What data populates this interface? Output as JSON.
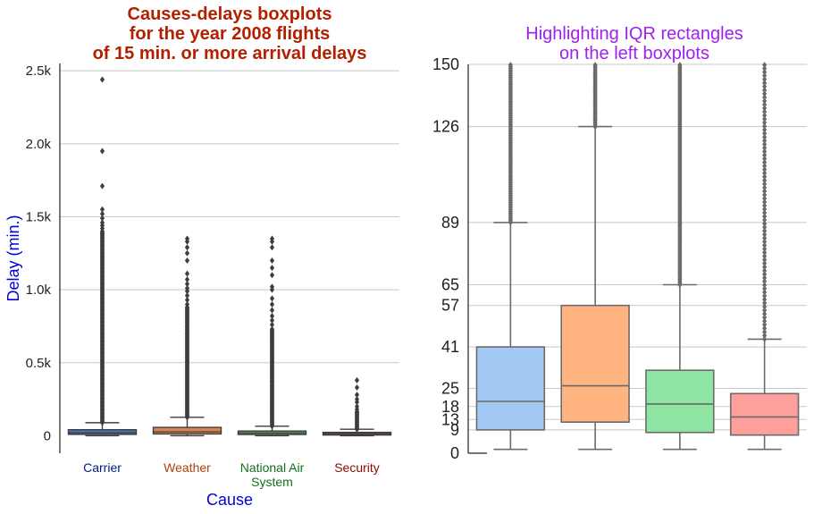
{
  "chart_data": [
    {
      "type": "boxplot",
      "title": "Causes-delays boxplots\nfor the year 2008 flights\nof 15 min. or more arrival delays",
      "xlabel": "Cause",
      "ylabel": "Delay (min.)",
      "ylim": [
        -120,
        2550
      ],
      "yticks": [
        {
          "value": 0,
          "label": "0"
        },
        {
          "value": 500,
          "label": "0.5k"
        },
        {
          "value": 1000,
          "label": "1.0k"
        },
        {
          "value": 1500,
          "label": "1.5k"
        },
        {
          "value": 2000,
          "label": "2.0k"
        },
        {
          "value": 2500,
          "label": "2.5k"
        }
      ],
      "grid": "horizontal",
      "categories": [
        {
          "label": "Carrier",
          "label_color": "#001c7f",
          "box_color": "#4c72b0"
        },
        {
          "label": "Weather",
          "label_color": "#b1400d",
          "box_color": "#dd8452"
        },
        {
          "label": "National Air\nSystem",
          "label_color": "#12711c",
          "box_color": "#55a868"
        },
        {
          "label": "Security",
          "label_color": "#8c0800",
          "box_color": "#c44e52"
        }
      ],
      "boxes": [
        {
          "whisker_low": 0,
          "q1": 9,
          "median": 20,
          "q3": 41,
          "whisker_high": 89,
          "outliers_from": 89,
          "outliers_to": 1400,
          "extra_outliers": [
            1420,
            1440,
            1460,
            1490,
            1520,
            1550,
            1710,
            1950,
            2440
          ]
        },
        {
          "whisker_low": 0,
          "q1": 12,
          "median": 26,
          "q3": 57,
          "whisker_high": 126,
          "outliers_from": 126,
          "outliers_to": 880,
          "extra_outliers": [
            900,
            930,
            960,
            990,
            1010,
            1040,
            1070,
            1110,
            1200,
            1250,
            1290,
            1330,
            1350
          ]
        },
        {
          "whisker_low": 0,
          "q1": 8,
          "median": 19,
          "q3": 32,
          "whisker_high": 65,
          "outliers_from": 65,
          "outliers_to": 730,
          "extra_outliers": [
            760,
            790,
            820,
            860,
            900,
            940,
            1000,
            1020,
            1100,
            1150,
            1200,
            1290,
            1330,
            1350
          ]
        },
        {
          "whisker_low": 0,
          "q1": 7,
          "median": 14,
          "q3": 23,
          "whisker_high": 44,
          "outliers_from": 44,
          "outliers_to": 160,
          "extra_outliers": [
            165,
            180,
            200,
            230,
            250,
            280,
            330,
            380
          ]
        }
      ]
    },
    {
      "type": "boxplot",
      "title": "Highlighting IQR rectangles\non the left boxplots",
      "xlabel": "",
      "ylabel": "",
      "ylim": [
        0,
        150
      ],
      "yticks": [
        {
          "value": 0,
          "label": "0"
        },
        {
          "value": 9,
          "label": "9"
        },
        {
          "value": 13,
          "label": "13"
        },
        {
          "value": 18,
          "label": "18"
        },
        {
          "value": 25,
          "label": "25"
        },
        {
          "value": 41,
          "label": "41"
        },
        {
          "value": 57,
          "label": "57"
        },
        {
          "value": 65,
          "label": "65"
        },
        {
          "value": 89,
          "label": "89"
        },
        {
          "value": 126,
          "label": "126"
        },
        {
          "value": 150,
          "label": "150"
        }
      ],
      "grid": "horizontal",
      "box_colors": [
        "#a1c9f4",
        "#ffb482",
        "#8de5a1",
        "#ff9f9b"
      ],
      "outliers_to_top_count": 3
    }
  ]
}
